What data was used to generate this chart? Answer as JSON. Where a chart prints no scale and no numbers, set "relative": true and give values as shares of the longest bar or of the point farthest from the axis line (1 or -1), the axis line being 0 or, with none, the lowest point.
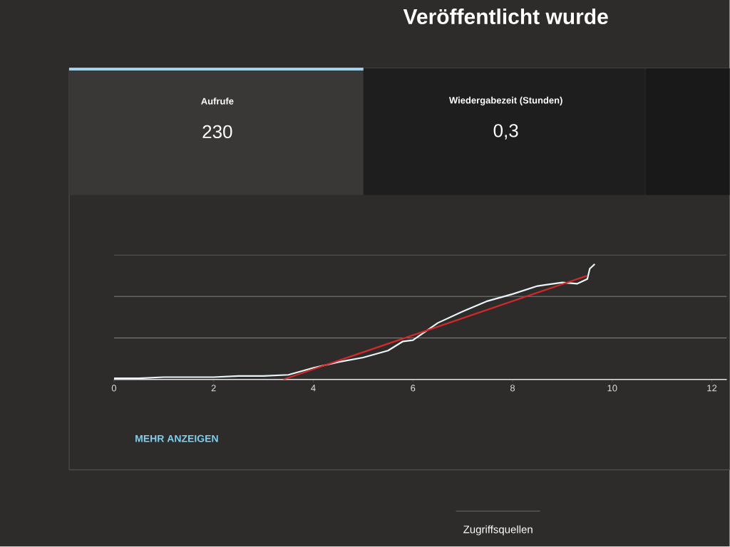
{
  "chart_data": {
    "type": "line",
    "title": "Veröffentlicht wurde",
    "relative": true,
    "xlim": [
      0,
      12.3
    ],
    "xticks": [
      0,
      2,
      4,
      6,
      8,
      10,
      12
    ],
    "ref_lines": [
      {
        "axis": "y",
        "value": 0.36,
        "color": "#969492"
      },
      {
        "axis": "y",
        "value": 0.72,
        "color": "#969492"
      },
      {
        "axis": "y",
        "value": 1.08,
        "color": "#969492"
      }
    ],
    "series": [
      {
        "color": "#e8f6fa",
        "x": [
          0,
          0.5,
          1,
          2,
          2.5,
          3,
          3.5,
          4,
          4.5,
          5,
          5.5,
          5.8,
          6,
          6.5,
          7,
          7.5,
          8,
          8.5,
          9,
          9.3,
          9.5,
          9.55,
          9.65
        ],
        "values": [
          0.01,
          0.01,
          0.02,
          0.02,
          0.03,
          0.03,
          0.04,
          0.1,
          0.15,
          0.19,
          0.25,
          0.33,
          0.34,
          0.49,
          0.59,
          0.68,
          0.74,
          0.81,
          0.84,
          0.83,
          0.87,
          0.96,
          1
        ]
      },
      {
        "color": "#d42a2a",
        "x": [
          3.4,
          9.5
        ],
        "values": [
          0,
          0.9
        ]
      }
    ],
    "annotations": [
      "Aufrufe",
      "230",
      "Wiedergabezeit (Stunden)",
      "0,3",
      "MEHR ANZEIGEN",
      "Zugriffsquellen"
    ]
  }
}
